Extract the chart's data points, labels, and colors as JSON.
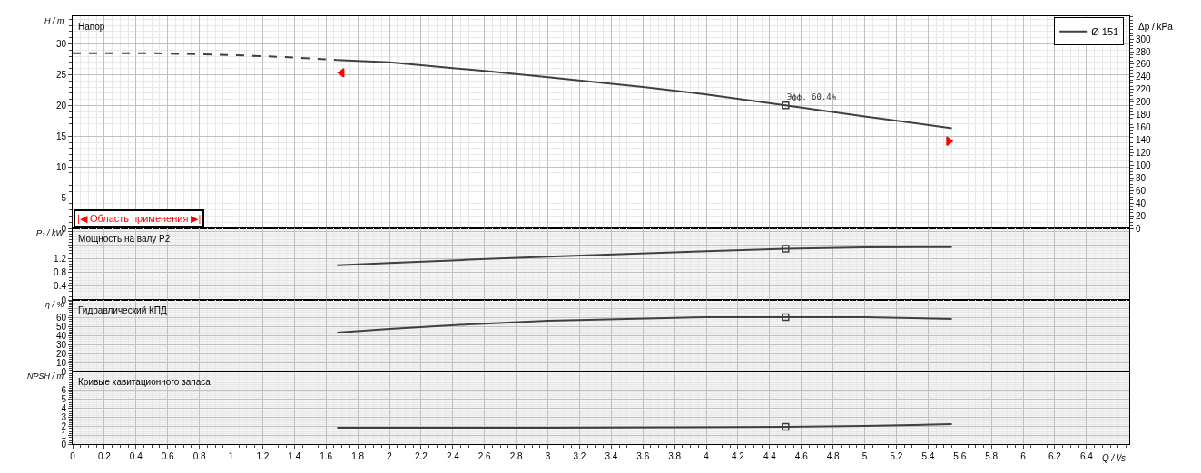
{
  "chart_data": [
    {
      "type": "line",
      "title": "Напор",
      "ylabel": "H / m",
      "y2label": "Δp / kPa",
      "xlim": [
        0,
        6.67
      ],
      "ylim": [
        0,
        34.5
      ],
      "y2lim": [
        0,
        336
      ],
      "xticks": [
        0,
        0.2,
        0.4,
        0.6,
        0.8,
        1,
        1.2,
        1.4,
        1.6,
        1.8,
        2,
        2.2,
        2.4,
        2.6,
        2.8,
        3,
        3.2,
        3.4,
        3.6,
        3.8,
        4,
        4.2,
        4.4,
        4.6,
        4.8,
        5,
        5.2,
        5.4,
        5.6,
        5.8,
        6,
        6.2,
        6.4
      ],
      "yticks": [
        0,
        5,
        10,
        15,
        20,
        25,
        30
      ],
      "y2ticks": [
        0,
        20,
        40,
        60,
        80,
        100,
        120,
        140,
        160,
        180,
        200,
        220,
        240,
        260,
        280,
        300
      ],
      "tick_labels": "y",
      "grid": true,
      "legend": "top right",
      "annotations": [
        {
          "text": "Эфф. 60.4%",
          "x": 4.5,
          "y": 20
        },
        "|◀ Область применения ▶|"
      ],
      "series": [
        {
          "x": [
            0,
            0.5,
            1.0,
            1.4,
            1.67
          ],
          "values": [
            28.5,
            28.5,
            28.2,
            27.8,
            27.4
          ],
          "color": "#404040",
          "line_style": "dashed"
        },
        {
          "name": "Ø 151",
          "x": [
            1.67,
            2.0,
            2.6,
            3.0,
            3.6,
            4.0,
            4.5,
            5.0,
            5.55
          ],
          "values": [
            27.4,
            27.0,
            25.6,
            24.6,
            23.0,
            21.8,
            20.0,
            18.2,
            16.3
          ],
          "color": "#404040",
          "line_style": "solid"
        },
        {
          "type": "scatter",
          "x": [
            4.5
          ],
          "values": [
            20.0
          ],
          "color": "#404040",
          "marker": "square"
        },
        {
          "type": "scatter",
          "x": [
            1.7,
            5.53
          ],
          "values": [
            25.3,
            14.2
          ],
          "color": "#ff0000",
          "marker": "triangle"
        }
      ]
    },
    {
      "type": "line",
      "title": "Мощность на валу P2",
      "ylabel": "P₂ / kW",
      "xlim": [
        0,
        6.67
      ],
      "ylim": [
        0,
        2.1
      ],
      "xticks": [
        0,
        0.2,
        0.4,
        0.6,
        0.8,
        1,
        1.2,
        1.4,
        1.6,
        1.8,
        2,
        2.2,
        2.4,
        2.6,
        2.8,
        3,
        3.2,
        3.4,
        3.6,
        3.8,
        4,
        4.2,
        4.4,
        4.6,
        4.8,
        5,
        5.2,
        5.4,
        5.6,
        5.8,
        6,
        6.2,
        6.4
      ],
      "yticks": [
        0,
        0.4,
        0.8,
        1.2,
        {
          "value": 1.6,
          "label": null
        },
        {
          "value": 2.0,
          "label": null
        }
      ],
      "tick_labels": "y",
      "grid": true,
      "series": [
        {
          "x": [
            1.67,
            2.0,
            2.5,
            3.0,
            3.5,
            4.0,
            4.5,
            5.0,
            5.55
          ],
          "values": [
            1.02,
            1.08,
            1.18,
            1.27,
            1.35,
            1.43,
            1.5,
            1.54,
            1.55
          ],
          "color": "#404040",
          "line_style": "solid"
        },
        {
          "type": "scatter",
          "x": [
            4.5
          ],
          "values": [
            1.5
          ],
          "color": "#404040",
          "marker": "square"
        }
      ]
    },
    {
      "type": "line",
      "title": "Гидравлический КПД",
      "ylabel": "η / %",
      "xlim": [
        0,
        6.67
      ],
      "ylim": [
        0,
        79
      ],
      "xticks": [
        0,
        0.2,
        0.4,
        0.6,
        0.8,
        1,
        1.2,
        1.4,
        1.6,
        1.8,
        2,
        2.2,
        2.4,
        2.6,
        2.8,
        3,
        3.2,
        3.4,
        3.6,
        3.8,
        4,
        4.2,
        4.4,
        4.6,
        4.8,
        5,
        5.2,
        5.4,
        5.6,
        5.8,
        6,
        6.2,
        6.4
      ],
      "yticks": [
        0,
        10,
        20,
        30,
        40,
        50,
        60,
        {
          "value": 70,
          "label": null
        }
      ],
      "tick_labels": "y",
      "grid": true,
      "series": [
        {
          "x": [
            1.67,
            2.0,
            2.5,
            3.0,
            3.5,
            4.0,
            4.5,
            5.0,
            5.55
          ],
          "values": [
            43,
            47,
            52,
            56,
            58,
            60,
            60,
            60,
            58
          ],
          "color": "#404040",
          "line_style": "solid"
        },
        {
          "type": "scatter",
          "x": [
            4.5
          ],
          "values": [
            60
          ],
          "color": "#404040",
          "marker": "square"
        }
      ]
    },
    {
      "type": "line",
      "title": "Кривые кавитационного запаса",
      "ylabel": "NPSH / m",
      "xlabel": "Q / l/s",
      "xlim": [
        0,
        6.67
      ],
      "ylim": [
        0,
        8
      ],
      "xticks": [
        0,
        0.2,
        0.4,
        0.6,
        0.8,
        1,
        1.2,
        1.4,
        1.6,
        1.8,
        2,
        2.2,
        2.4,
        2.6,
        2.8,
        3,
        3.2,
        3.4,
        3.6,
        3.8,
        4,
        4.2,
        4.4,
        4.6,
        4.8,
        5,
        5.2,
        5.4,
        5.6,
        5.8,
        6,
        6.2,
        6.4
      ],
      "yticks": [
        0,
        1,
        2,
        3,
        4,
        5,
        6,
        {
          "value": 7,
          "label": null
        }
      ],
      "grid": true,
      "series": [
        {
          "x": [
            1.67,
            3.0,
            4.5,
            5.0,
            5.55
          ],
          "values": [
            1.8,
            1.8,
            1.9,
            2.0,
            2.2
          ],
          "color": "#404040",
          "line_style": "solid"
        },
        {
          "type": "scatter",
          "x": [
            4.5
          ],
          "values": [
            1.9
          ],
          "color": "#404040",
          "marker": "square"
        }
      ]
    }
  ]
}
